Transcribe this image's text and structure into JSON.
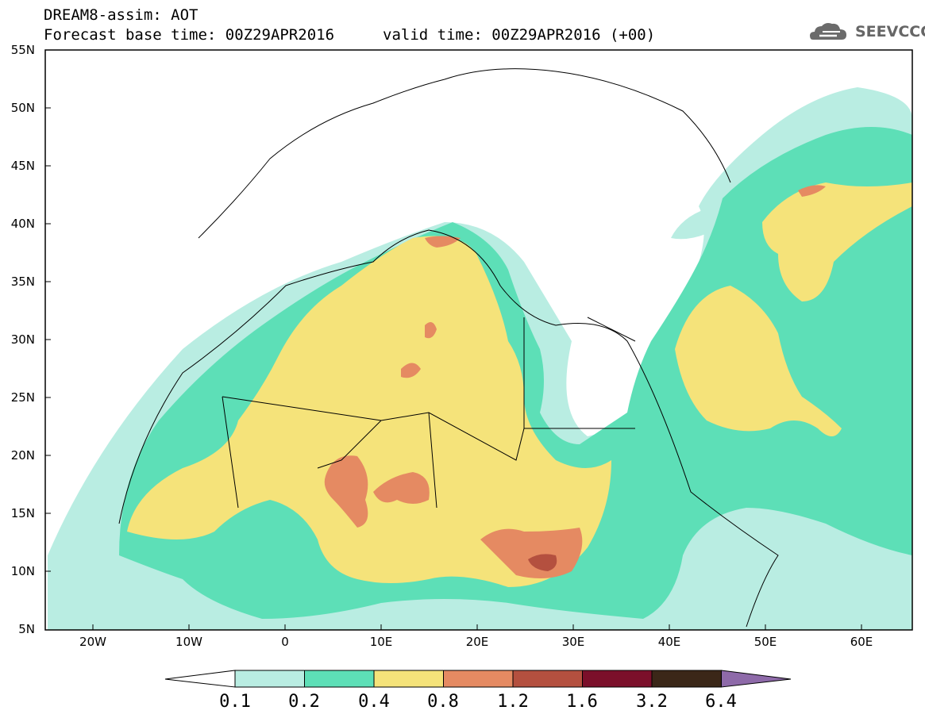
{
  "header": {
    "line1": "DREAM8-assim: AOT",
    "line2a": "Forecast base time: 00Z29APR2016",
    "line2b": "valid time: 00Z29APR2016 (+00)",
    "logo_text": "SEEVCCC",
    "logo_icon": "cloud-icon"
  },
  "axes": {
    "lat_labels": [
      "55N",
      "50N",
      "45N",
      "40N",
      "35N",
      "30N",
      "25N",
      "20N",
      "15N",
      "10N",
      "5N"
    ],
    "lon_labels": [
      "20W",
      "10W",
      "0",
      "10E",
      "20E",
      "30E",
      "40E",
      "50E",
      "60E"
    ]
  },
  "colorbar": {
    "labels": [
      "0.1",
      "0.2",
      "0.4",
      "0.8",
      "1.2",
      "1.6",
      "3.2",
      "6.4"
    ],
    "colors": [
      "#ffffff",
      "#b9ede2",
      "#5ddfb7",
      "#f5e37a",
      "#e58a62",
      "#b4503f",
      "#7b0f2a",
      "#3b2718",
      "#8e6aa9"
    ]
  },
  "map_colors": {
    "c1": "#b9ede2",
    "c2": "#5ddfb7",
    "c3": "#f5e37a",
    "c4": "#e58a62",
    "c5": "#b4503f",
    "c6": "#7b0f2a"
  }
}
